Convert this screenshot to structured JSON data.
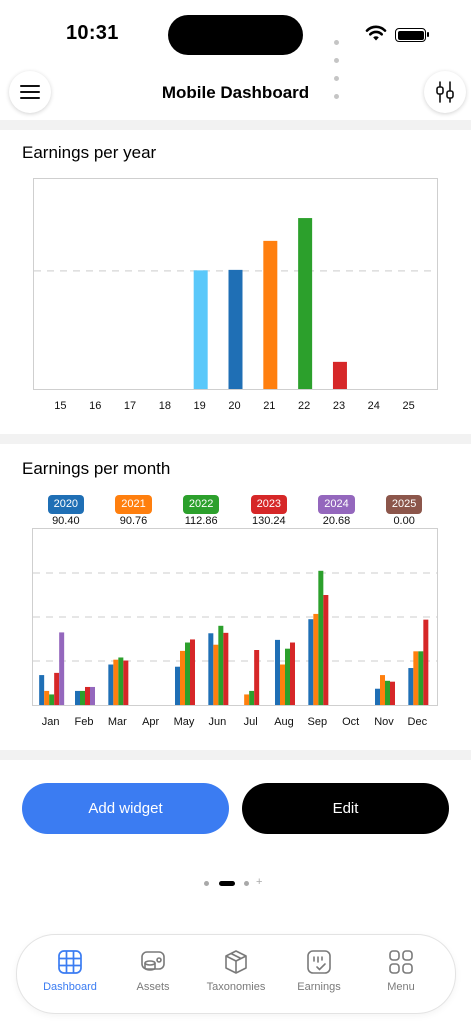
{
  "status": {
    "time": "10:31"
  },
  "header": {
    "title": "Mobile Dashboard",
    "menu_icon": "hamburger-menu-icon",
    "filter_icon": "sliders-icon"
  },
  "yearly": {
    "title": "Earnings per year",
    "chart_data": {
      "type": "bar",
      "categories": [
        "15",
        "16",
        "17",
        "18",
        "19",
        "20",
        "21",
        "22",
        "23",
        "24",
        "25"
      ],
      "values": [
        0,
        0,
        0,
        0,
        90.4,
        90.76,
        112.86,
        130.24,
        20.68,
        0,
        0
      ],
      "colors": [
        "#5ac8fa",
        "#5ac8fa",
        "#5ac8fa",
        "#5ac8fa",
        "#5ac8fa",
        "#1f6fb5",
        "#ff7f0e",
        "#2ca02c",
        "#d62728",
        "#9467bd",
        "#9467bd"
      ],
      "ylim": [
        0,
        160
      ],
      "gridline_at": 90,
      "grid": "dashed"
    }
  },
  "monthly": {
    "title": "Earnings per month",
    "legend": [
      {
        "label": "2020",
        "value": "90.40",
        "color": "#1f6fb5"
      },
      {
        "label": "2021",
        "value": "90.76",
        "color": "#ff7f0e"
      },
      {
        "label": "2022",
        "value": "112.86",
        "color": "#2ca02c"
      },
      {
        "label": "2023",
        "value": "130.24",
        "color": "#d62728"
      },
      {
        "label": "2024",
        "value": "20.68",
        "color": "#9467bd"
      },
      {
        "label": "2025",
        "value": "0.00",
        "color": "#8c564b"
      }
    ],
    "chart_data": {
      "type": "bar",
      "categories": [
        "Jan",
        "Feb",
        "Mar",
        "Apr",
        "May",
        "Jun",
        "Jul",
        "Aug",
        "Sep",
        "Oct",
        "Nov",
        "Dec"
      ],
      "series": [
        {
          "name": "2020",
          "values": [
            6.8,
            3.2,
            9.2,
            0,
            8.7,
            16.3,
            0,
            14.8,
            19.5,
            0,
            3.7,
            8.4
          ]
        },
        {
          "name": "2021",
          "values": [
            3.2,
            0,
            10.3,
            0,
            12.3,
            13.7,
            2.4,
            9.2,
            20.7,
            0,
            6.8,
            12.2
          ]
        },
        {
          "name": "2022",
          "values": [
            2.4,
            3.2,
            10.8,
            0,
            14.2,
            18.0,
            3.2,
            12.8,
            30.5,
            0,
            5.5,
            12.2
          ]
        },
        {
          "name": "2023",
          "values": [
            7.3,
            4.1,
            10.1,
            0,
            14.9,
            16.4,
            12.5,
            14.2,
            25.0,
            0,
            5.3,
            19.4
          ]
        },
        {
          "name": "2024",
          "values": [
            16.5,
            4.1,
            0,
            0,
            0,
            0,
            0,
            0,
            0,
            0,
            0,
            0
          ]
        },
        {
          "name": "2025",
          "values": [
            0,
            0,
            0,
            0,
            0,
            0,
            0,
            0,
            0,
            0,
            0,
            0
          ]
        }
      ],
      "ylim": [
        0,
        40
      ],
      "gridlines": [
        10,
        20,
        30
      ],
      "grid": "dashed"
    }
  },
  "actions": {
    "add_widget": "Add widget",
    "edit": "Edit"
  },
  "pager": {
    "pages": 3,
    "current": 2
  },
  "tabbar": [
    {
      "label": "Dashboard",
      "icon": "grid-globe-icon",
      "active": true
    },
    {
      "label": "Assets",
      "icon": "coins-icon",
      "active": false
    },
    {
      "label": "Taxonomies",
      "icon": "cube-icon",
      "active": false
    },
    {
      "label": "Earnings",
      "icon": "earnings-chart-icon",
      "active": false
    },
    {
      "label": "Menu",
      "icon": "four-squares-icon",
      "active": false
    }
  ],
  "colors": {
    "accent": "#3b7cf2",
    "divider": "#f2f2f2",
    "chart_border": "#cfcfcf",
    "grid": "#d6d6d6"
  }
}
